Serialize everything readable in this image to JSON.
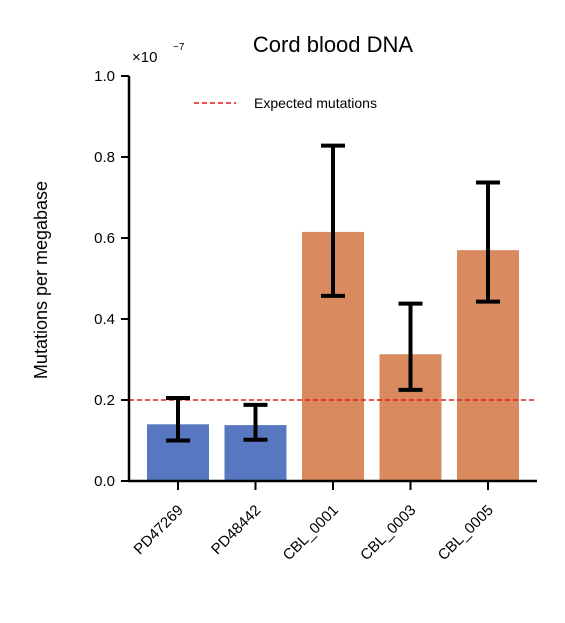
{
  "chart_data": {
    "type": "bar",
    "title": "Cord blood DNA",
    "ylabel": "Mutations per megabase",
    "xlabel": "",
    "y_multiplier": {
      "base": "×10",
      "exponent": "−7"
    },
    "ylim": [
      0,
      1.0
    ],
    "yticks": [
      {
        "value": 0.0,
        "label": "0.0"
      },
      {
        "value": 0.2,
        "label": "0.2"
      },
      {
        "value": 0.4,
        "label": "0.4"
      },
      {
        "value": 0.6,
        "label": "0.6"
      },
      {
        "value": 0.8,
        "label": "0.8"
      },
      {
        "value": 1.0,
        "label": "1.0"
      }
    ],
    "categories": [
      "PD47269",
      "PD48442",
      "CBL_0001",
      "CBL_0003",
      "CBL_0005"
    ],
    "values": [
      0.14,
      0.138,
      0.615,
      0.313,
      0.57
    ],
    "error_low": [
      0.1,
      0.102,
      0.457,
      0.225,
      0.443
    ],
    "error_high": [
      0.205,
      0.188,
      0.828,
      0.438,
      0.737
    ],
    "bar_colors": [
      "#5877c1",
      "#5877c1",
      "#d98b5f",
      "#d98b5f",
      "#d98b5f"
    ],
    "reference_line": {
      "label": "Expected mutations",
      "value": 0.2,
      "color": "#e31a1c",
      "style": "dashed"
    },
    "legend_position": "top"
  }
}
